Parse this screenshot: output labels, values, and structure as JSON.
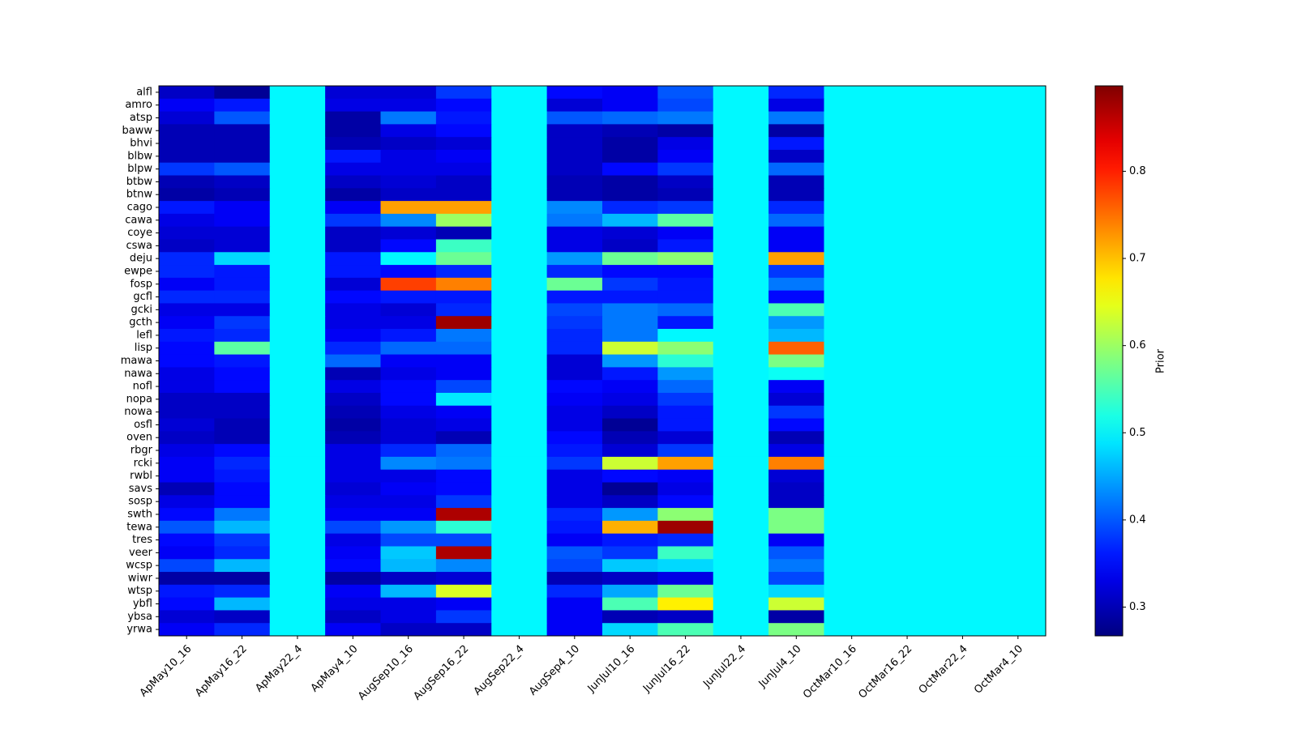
{
  "chart_data": {
    "type": "heatmap",
    "colormap": "jet",
    "colorbar_label": "Prior",
    "clim": [
      0.267,
      0.898
    ],
    "cticks": [
      0.3,
      0.4,
      0.5,
      0.6,
      0.7,
      0.8
    ],
    "x_categories": [
      "ApMay10_16",
      "ApMay16_22",
      "ApMay22_4",
      "ApMay4_10",
      "AugSep10_16",
      "AugSep16_22",
      "AugSep22_4",
      "AugSep4_10",
      "JunJul10_16",
      "JunJul16_22",
      "JunJul22_4",
      "JunJul4_10",
      "OctMar10_16",
      "OctMar16_22",
      "OctMar22_4",
      "OctMar4_10"
    ],
    "y_categories": [
      "alfl",
      "amro",
      "atsp",
      "baww",
      "bhvi",
      "blbw",
      "blpw",
      "btbw",
      "btnw",
      "cago",
      "cawa",
      "coye",
      "cswa",
      "deju",
      "ewpe",
      "fosp",
      "gcfl",
      "gcki",
      "gcth",
      "lefl",
      "lisp",
      "mawa",
      "nawa",
      "nofl",
      "nopa",
      "nowa",
      "osfl",
      "oven",
      "rbgr",
      "rcki",
      "rwbl",
      "savs",
      "sosp",
      "swth",
      "tewa",
      "tres",
      "veer",
      "wcsp",
      "wiwr",
      "wtsp",
      "ybfl",
      "ybsa",
      "yrwa"
    ],
    "values": [
      [
        0.31,
        0.28,
        0.5,
        0.32,
        0.32,
        0.38,
        0.5,
        0.35,
        0.34,
        0.4,
        0.5,
        0.37,
        0.5,
        0.5,
        0.5,
        0.5
      ],
      [
        0.34,
        0.36,
        0.5,
        0.33,
        0.33,
        0.35,
        0.5,
        0.32,
        0.34,
        0.39,
        0.5,
        0.33,
        0.5,
        0.5,
        0.5,
        0.5
      ],
      [
        0.32,
        0.4,
        0.5,
        0.29,
        0.42,
        0.36,
        0.5,
        0.4,
        0.41,
        0.42,
        0.5,
        0.42,
        0.5,
        0.5,
        0.5,
        0.5
      ],
      [
        0.3,
        0.3,
        0.5,
        0.29,
        0.33,
        0.35,
        0.5,
        0.31,
        0.3,
        0.29,
        0.5,
        0.29,
        0.5,
        0.5,
        0.5,
        0.5
      ],
      [
        0.3,
        0.3,
        0.5,
        0.3,
        0.31,
        0.32,
        0.5,
        0.31,
        0.29,
        0.33,
        0.5,
        0.36,
        0.5,
        0.5,
        0.5,
        0.5
      ],
      [
        0.3,
        0.3,
        0.5,
        0.36,
        0.33,
        0.34,
        0.5,
        0.31,
        0.29,
        0.34,
        0.5,
        0.31,
        0.5,
        0.5,
        0.5,
        0.5
      ],
      [
        0.38,
        0.4,
        0.5,
        0.33,
        0.33,
        0.33,
        0.5,
        0.31,
        0.35,
        0.38,
        0.5,
        0.41,
        0.5,
        0.5,
        0.5,
        0.5
      ],
      [
        0.3,
        0.31,
        0.5,
        0.31,
        0.32,
        0.31,
        0.5,
        0.3,
        0.29,
        0.31,
        0.5,
        0.3,
        0.5,
        0.5,
        0.5,
        0.5
      ],
      [
        0.29,
        0.3,
        0.5,
        0.29,
        0.31,
        0.31,
        0.5,
        0.3,
        0.29,
        0.3,
        0.5,
        0.3,
        0.5,
        0.5,
        0.5,
        0.5
      ],
      [
        0.36,
        0.34,
        0.5,
        0.34,
        0.72,
        0.72,
        0.5,
        0.43,
        0.37,
        0.38,
        0.5,
        0.37,
        0.5,
        0.5,
        0.5,
        0.5
      ],
      [
        0.33,
        0.34,
        0.5,
        0.38,
        0.43,
        0.6,
        0.5,
        0.42,
        0.46,
        0.56,
        0.5,
        0.41,
        0.5,
        0.5,
        0.5,
        0.5
      ],
      [
        0.32,
        0.32,
        0.5,
        0.31,
        0.32,
        0.3,
        0.5,
        0.33,
        0.32,
        0.34,
        0.5,
        0.34,
        0.5,
        0.5,
        0.5,
        0.5
      ],
      [
        0.31,
        0.32,
        0.5,
        0.31,
        0.35,
        0.54,
        0.5,
        0.33,
        0.31,
        0.36,
        0.5,
        0.34,
        0.5,
        0.5,
        0.5,
        0.5
      ],
      [
        0.37,
        0.48,
        0.5,
        0.36,
        0.5,
        0.57,
        0.5,
        0.44,
        0.57,
        0.59,
        0.5,
        0.72,
        0.5,
        0.5,
        0.5,
        0.5
      ],
      [
        0.37,
        0.36,
        0.5,
        0.36,
        0.35,
        0.37,
        0.5,
        0.37,
        0.35,
        0.35,
        0.5,
        0.38,
        0.5,
        0.5,
        0.5,
        0.5
      ],
      [
        0.34,
        0.36,
        0.5,
        0.32,
        0.78,
        0.74,
        0.5,
        0.57,
        0.38,
        0.36,
        0.5,
        0.42,
        0.5,
        0.5,
        0.5,
        0.5
      ],
      [
        0.37,
        0.37,
        0.5,
        0.35,
        0.36,
        0.36,
        0.5,
        0.36,
        0.36,
        0.36,
        0.5,
        0.35,
        0.5,
        0.5,
        0.5,
        0.5
      ],
      [
        0.33,
        0.33,
        0.5,
        0.33,
        0.32,
        0.37,
        0.5,
        0.39,
        0.42,
        0.41,
        0.5,
        0.55,
        0.5,
        0.5,
        0.5,
        0.5
      ],
      [
        0.34,
        0.38,
        0.5,
        0.33,
        0.33,
        0.88,
        0.5,
        0.38,
        0.42,
        0.36,
        0.5,
        0.44,
        0.5,
        0.5,
        0.5,
        0.5
      ],
      [
        0.36,
        0.37,
        0.5,
        0.34,
        0.36,
        0.42,
        0.5,
        0.37,
        0.42,
        0.5,
        0.5,
        0.46,
        0.5,
        0.5,
        0.5,
        0.5
      ],
      [
        0.35,
        0.56,
        0.5,
        0.37,
        0.41,
        0.41,
        0.5,
        0.37,
        0.63,
        0.59,
        0.5,
        0.76,
        0.5,
        0.5,
        0.5,
        0.5
      ],
      [
        0.35,
        0.36,
        0.5,
        0.41,
        0.34,
        0.34,
        0.5,
        0.32,
        0.44,
        0.53,
        0.5,
        0.58,
        0.5,
        0.5,
        0.5,
        0.5
      ],
      [
        0.33,
        0.35,
        0.5,
        0.3,
        0.33,
        0.34,
        0.5,
        0.32,
        0.36,
        0.44,
        0.5,
        0.51,
        0.5,
        0.5,
        0.5,
        0.5
      ],
      [
        0.33,
        0.35,
        0.5,
        0.33,
        0.35,
        0.39,
        0.5,
        0.35,
        0.34,
        0.41,
        0.5,
        0.34,
        0.5,
        0.5,
        0.5,
        0.5
      ],
      [
        0.31,
        0.31,
        0.5,
        0.31,
        0.35,
        0.49,
        0.5,
        0.34,
        0.33,
        0.38,
        0.5,
        0.32,
        0.5,
        0.5,
        0.5,
        0.5
      ],
      [
        0.31,
        0.31,
        0.5,
        0.3,
        0.33,
        0.34,
        0.5,
        0.33,
        0.31,
        0.36,
        0.5,
        0.38,
        0.5,
        0.5,
        0.5,
        0.5
      ],
      [
        0.32,
        0.3,
        0.5,
        0.29,
        0.32,
        0.33,
        0.5,
        0.33,
        0.28,
        0.36,
        0.5,
        0.35,
        0.5,
        0.5,
        0.5,
        0.5
      ],
      [
        0.31,
        0.3,
        0.5,
        0.3,
        0.32,
        0.3,
        0.5,
        0.35,
        0.3,
        0.32,
        0.5,
        0.3,
        0.5,
        0.5,
        0.5,
        0.5
      ],
      [
        0.33,
        0.35,
        0.5,
        0.33,
        0.37,
        0.41,
        0.5,
        0.36,
        0.32,
        0.38,
        0.5,
        0.33,
        0.5,
        0.5,
        0.5,
        0.5
      ],
      [
        0.34,
        0.37,
        0.5,
        0.33,
        0.43,
        0.42,
        0.5,
        0.38,
        0.63,
        0.72,
        0.5,
        0.74,
        0.5,
        0.5,
        0.5,
        0.5
      ],
      [
        0.34,
        0.36,
        0.5,
        0.33,
        0.33,
        0.35,
        0.5,
        0.33,
        0.35,
        0.34,
        0.5,
        0.32,
        0.5,
        0.5,
        0.5,
        0.5
      ],
      [
        0.3,
        0.35,
        0.5,
        0.32,
        0.34,
        0.35,
        0.5,
        0.33,
        0.28,
        0.33,
        0.5,
        0.31,
        0.5,
        0.5,
        0.5,
        0.5
      ],
      [
        0.33,
        0.35,
        0.5,
        0.33,
        0.33,
        0.38,
        0.5,
        0.33,
        0.31,
        0.35,
        0.5,
        0.31,
        0.5,
        0.5,
        0.5,
        0.5
      ],
      [
        0.35,
        0.42,
        0.5,
        0.34,
        0.34,
        0.87,
        0.5,
        0.37,
        0.44,
        0.59,
        0.5,
        0.58,
        0.5,
        0.5,
        0.5,
        0.5
      ],
      [
        0.4,
        0.46,
        0.5,
        0.39,
        0.44,
        0.53,
        0.5,
        0.36,
        0.71,
        0.88,
        0.5,
        0.58,
        0.5,
        0.5,
        0.5,
        0.5
      ],
      [
        0.35,
        0.38,
        0.5,
        0.33,
        0.39,
        0.39,
        0.5,
        0.34,
        0.36,
        0.37,
        0.5,
        0.34,
        0.5,
        0.5,
        0.5,
        0.5
      ],
      [
        0.34,
        0.37,
        0.5,
        0.34,
        0.47,
        0.87,
        0.5,
        0.4,
        0.38,
        0.54,
        0.5,
        0.4,
        0.5,
        0.5,
        0.5,
        0.5
      ],
      [
        0.39,
        0.46,
        0.5,
        0.35,
        0.46,
        0.43,
        0.5,
        0.39,
        0.47,
        0.48,
        0.5,
        0.42,
        0.5,
        0.5,
        0.5,
        0.5
      ],
      [
        0.29,
        0.29,
        0.5,
        0.29,
        0.31,
        0.32,
        0.5,
        0.3,
        0.31,
        0.33,
        0.5,
        0.39,
        0.5,
        0.5,
        0.5,
        0.5
      ],
      [
        0.36,
        0.37,
        0.5,
        0.34,
        0.46,
        0.64,
        0.5,
        0.37,
        0.45,
        0.57,
        0.5,
        0.48,
        0.5,
        0.5,
        0.5,
        0.5
      ],
      [
        0.35,
        0.46,
        0.5,
        0.33,
        0.33,
        0.34,
        0.5,
        0.34,
        0.55,
        0.67,
        0.5,
        0.63,
        0.5,
        0.5,
        0.5,
        0.5
      ],
      [
        0.32,
        0.31,
        0.5,
        0.31,
        0.33,
        0.38,
        0.5,
        0.34,
        0.3,
        0.31,
        0.5,
        0.29,
        0.5,
        0.5,
        0.5,
        0.5
      ],
      [
        0.34,
        0.37,
        0.5,
        0.34,
        0.31,
        0.31,
        0.5,
        0.34,
        0.48,
        0.55,
        0.5,
        0.58,
        0.5,
        0.5,
        0.5,
        0.5
      ]
    ]
  }
}
